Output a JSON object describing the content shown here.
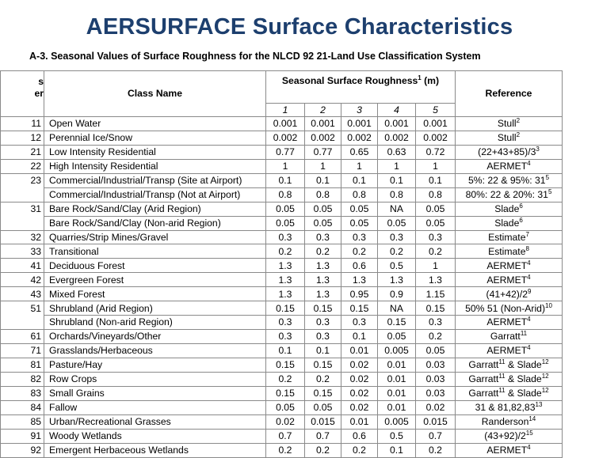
{
  "page": {
    "title": "AERSURFACE Surface Characteristics",
    "caption": "A-3. Seasonal Values of Surface Roughness for the NLCD 92 21-Land Use Classification System"
  },
  "table": {
    "header": {
      "code_line1": "s",
      "code_line2": "er",
      "class_name": "Class Name",
      "roughness": "Seasonal Surface Roughness",
      "roughness_sup": "1",
      "roughness_unit": " (m)",
      "reference": "Reference",
      "seasons": [
        "1",
        "2",
        "3",
        "4",
        "5"
      ]
    },
    "rows": [
      {
        "code": "11",
        "name": "Open Water",
        "v": [
          "0.001",
          "0.001",
          "0.001",
          "0.001",
          "0.001"
        ],
        "ref": "Stull",
        "sup": "2"
      },
      {
        "code": "12",
        "name": "Perennial Ice/Snow",
        "v": [
          "0.002",
          "0.002",
          "0.002",
          "0.002",
          "0.002"
        ],
        "ref": "Stull",
        "sup": "2"
      },
      {
        "code": "21",
        "name": "Low Intensity Residential",
        "v": [
          "0.77",
          "0.77",
          "0.65",
          "0.63",
          "0.72"
        ],
        "ref": "(22+43+85)/3",
        "sup": "3"
      },
      {
        "code": "22",
        "name": "High Intensity Residential",
        "v": [
          "1",
          "1",
          "1",
          "1",
          "1"
        ],
        "ref": "AERMET",
        "sup": "4"
      },
      {
        "code": "23",
        "name": "Commercial/Industrial/Transp (Site at Airport)",
        "v": [
          "0.1",
          "0.1",
          "0.1",
          "0.1",
          "0.1"
        ],
        "ref": "5%: 22 & 95%: 31",
        "sup": "5"
      },
      {
        "code": "",
        "name": "Commercial/Industrial/Transp (Not at Airport)",
        "v": [
          "0.8",
          "0.8",
          "0.8",
          "0.8",
          "0.8"
        ],
        "ref": "80%: 22 & 20%: 31",
        "sup": "5"
      },
      {
        "code": "31",
        "name": "Bare Rock/Sand/Clay (Arid Region)",
        "v": [
          "0.05",
          "0.05",
          "0.05",
          "NA",
          "0.05"
        ],
        "ref": "Slade",
        "sup": "6"
      },
      {
        "code": "",
        "name": "Bare Rock/Sand/Clay (Non-arid Region)",
        "v": [
          "0.05",
          "0.05",
          "0.05",
          "0.05",
          "0.05"
        ],
        "ref": "Slade",
        "sup": "6"
      },
      {
        "code": "32",
        "name": "Quarries/Strip Mines/Gravel",
        "v": [
          "0.3",
          "0.3",
          "0.3",
          "0.3",
          "0.3"
        ],
        "ref": "Estimate",
        "sup": "7"
      },
      {
        "code": "33",
        "name": "Transitional",
        "v": [
          "0.2",
          "0.2",
          "0.2",
          "0.2",
          "0.2"
        ],
        "ref": "Estimate",
        "sup": "8"
      },
      {
        "code": "41",
        "name": "Deciduous Forest",
        "v": [
          "1.3",
          "1.3",
          "0.6",
          "0.5",
          "1"
        ],
        "ref": "AERMET",
        "sup": "4"
      },
      {
        "code": "42",
        "name": "Evergreen Forest",
        "v": [
          "1.3",
          "1.3",
          "1.3",
          "1.3",
          "1.3"
        ],
        "ref": "AERMET",
        "sup": "4"
      },
      {
        "code": "43",
        "name": "Mixed Forest",
        "v": [
          "1.3",
          "1.3",
          "0.95",
          "0.9",
          "1.15"
        ],
        "ref": "(41+42)/2",
        "sup": "9"
      },
      {
        "code": "51",
        "name": "Shrubland (Arid Region)",
        "v": [
          "0.15",
          "0.15",
          "0.15",
          "NA",
          "0.15"
        ],
        "ref": "50% 51 (Non-Arid)",
        "sup": "10"
      },
      {
        "code": "",
        "name": "Shrubland (Non-arid Region)",
        "v": [
          "0.3",
          "0.3",
          "0.3",
          "0.15",
          "0.3"
        ],
        "ref": "AERMET",
        "sup": "4"
      },
      {
        "code": "61",
        "name": "Orchards/Vineyards/Other",
        "v": [
          "0.3",
          "0.3",
          "0.1",
          "0.05",
          "0.2"
        ],
        "ref": "Garratt",
        "sup": "11"
      },
      {
        "code": "71",
        "name": "Grasslands/Herbaceous",
        "v": [
          "0.1",
          "0.1",
          "0.01",
          "0.005",
          "0.05"
        ],
        "ref": "AERMET",
        "sup": "4"
      },
      {
        "code": "81",
        "name": "Pasture/Hay",
        "v": [
          "0.15",
          "0.15",
          "0.02",
          "0.01",
          "0.03"
        ],
        "ref": "Garratt",
        "sup": "11",
        "ref2": " & Slade",
        "sup2": "12"
      },
      {
        "code": "82",
        "name": "Row Crops",
        "v": [
          "0.2",
          "0.2",
          "0.02",
          "0.01",
          "0.03"
        ],
        "ref": "Garratt",
        "sup": "11",
        "ref2": " & Slade",
        "sup2": "12"
      },
      {
        "code": "83",
        "name": "Small Grains",
        "v": [
          "0.15",
          "0.15",
          "0.02",
          "0.01",
          "0.03"
        ],
        "ref": "Garratt",
        "sup": "11",
        "ref2": " & Slade",
        "sup2": "12"
      },
      {
        "code": "84",
        "name": "Fallow",
        "v": [
          "0.05",
          "0.05",
          "0.02",
          "0.01",
          "0.02"
        ],
        "ref": "31 & 81,82,83",
        "sup": "13"
      },
      {
        "code": "85",
        "name": "Urban/Recreational Grasses",
        "v": [
          "0.02",
          "0.015",
          "0.01",
          "0.005",
          "0.015"
        ],
        "ref": "Randerson",
        "sup": "14"
      },
      {
        "code": "91",
        "name": "Woody Wetlands",
        "v": [
          "0.7",
          "0.7",
          "0.6",
          "0.5",
          "0.7"
        ],
        "ref": "(43+92)/2",
        "sup": "15"
      },
      {
        "code": "92",
        "name": "Emergent Herbaceous Wetlands",
        "v": [
          "0.2",
          "0.2",
          "0.2",
          "0.1",
          "0.2"
        ],
        "ref": "AERMET",
        "sup": "4"
      }
    ]
  }
}
